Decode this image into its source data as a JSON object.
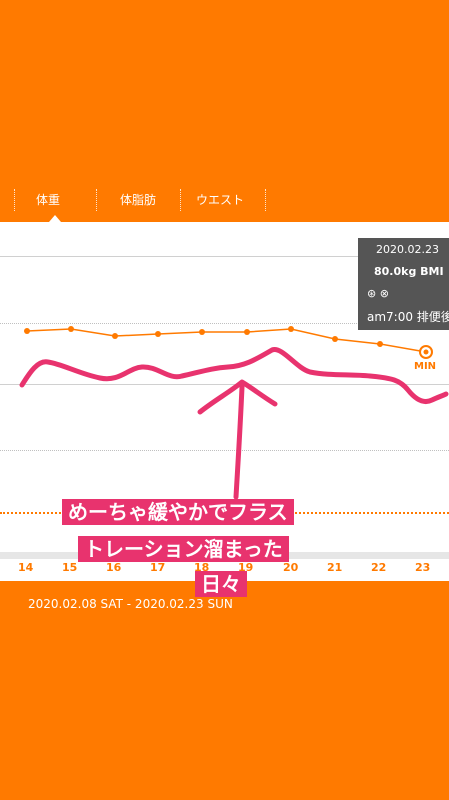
{
  "tabs": [
    "体重",
    "体脂肪",
    "ウエスト"
  ],
  "tooltip": {
    "date": "2020.02.23",
    "weight_bmi": "80.0kg  BMI",
    "icons": "⊛ ⊗",
    "time_note": "am7:00 排便後"
  },
  "min_label": "MIN",
  "x_ticks": [
    "14",
    "15",
    "16",
    "17",
    "18",
    "19",
    "20",
    "21",
    "22",
    "23"
  ],
  "date_range": "2020.02.08 SAT - 2020.02.23 SUN",
  "overlay": {
    "line1": "めーちゃ緩やかでフラス",
    "line2": "トレーション溜まった",
    "line3": "日々"
  },
  "colors": {
    "accent": "#FF7A00",
    "annotation": "#E8336E"
  }
}
